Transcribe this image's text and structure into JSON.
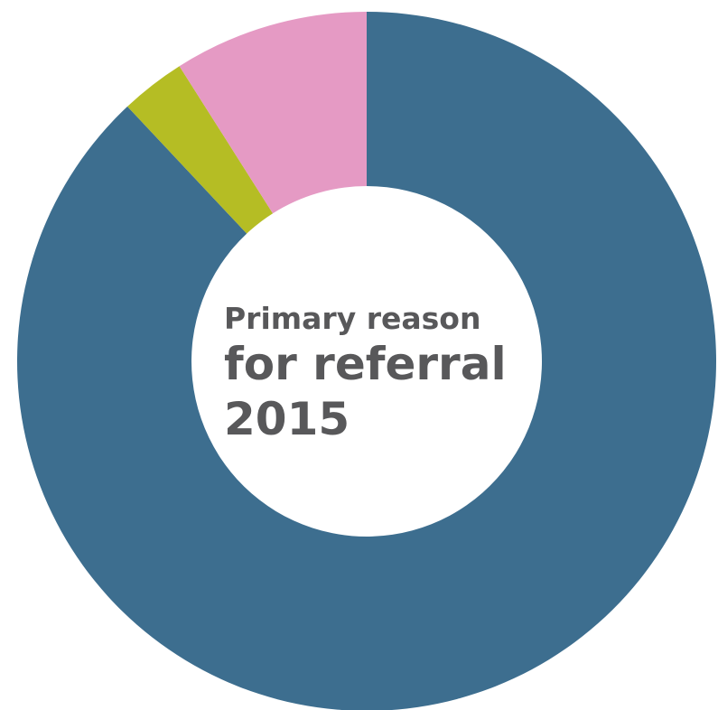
{
  "chart_data": {
    "type": "donut",
    "title": [
      "Primary reason",
      "for referral",
      "2015"
    ],
    "categories": [
      null,
      null,
      null
    ],
    "values": [
      88,
      3,
      9
    ],
    "colors": [
      "#3d6e8f",
      "#b5bd24",
      "#e59ac4"
    ]
  }
}
